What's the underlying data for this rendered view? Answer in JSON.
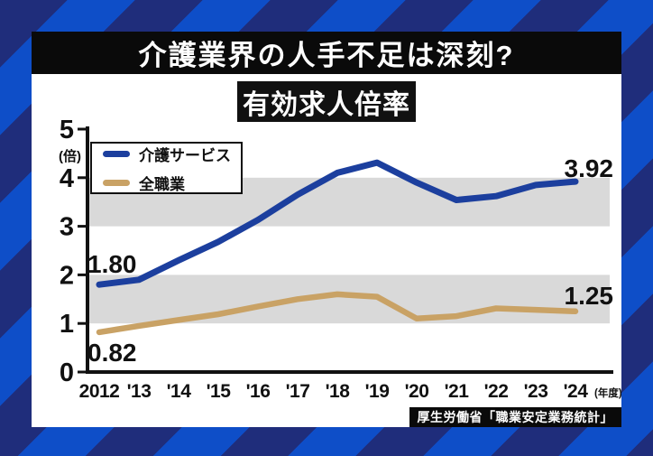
{
  "page": {
    "title": "介護業界の人手不足は深刻?",
    "subtitle": "有効求人倍率",
    "source": "厚生労働省「職業安定業務統計」"
  },
  "colors": {
    "care_line": "#1c3f9e",
    "all_line": "#c9a265",
    "gray_band": "#d9d9d9",
    "bg_stripe_dark": "#1f2d7b",
    "bg_stripe_bright": "#0e4ec8",
    "panel_bg": "#ffffff",
    "bar_bg": "#0a0a0a"
  },
  "chart_data": {
    "type": "line",
    "title": "有効求人倍率",
    "unit_label": "(倍)",
    "x_suffix": "(年度)",
    "categories": [
      "2012",
      "'13",
      "'14",
      "'15",
      "'16",
      "'17",
      "'18",
      "'19",
      "'20",
      "'21",
      "'22",
      "'23",
      "'24"
    ],
    "series": [
      {
        "name": "介護サービス",
        "color": "#1c3f9e",
        "values": [
          1.8,
          1.9,
          2.3,
          2.68,
          3.13,
          3.65,
          4.1,
          4.31,
          3.9,
          3.54,
          3.62,
          3.85,
          3.92
        ],
        "first_label": "1.80",
        "last_label": "3.92"
      },
      {
        "name": "全職業",
        "color": "#c9a265",
        "values": [
          0.82,
          0.95,
          1.07,
          1.19,
          1.35,
          1.5,
          1.6,
          1.55,
          1.1,
          1.15,
          1.31,
          1.28,
          1.25
        ],
        "first_label": "0.82",
        "last_label": "1.25"
      }
    ],
    "ylim": [
      0,
      5
    ],
    "yticks": [
      0,
      1,
      2,
      3,
      4,
      5
    ],
    "gray_bands": [
      [
        1,
        2
      ],
      [
        3,
        4
      ]
    ],
    "legend_position": "top-left",
    "grid": false
  }
}
